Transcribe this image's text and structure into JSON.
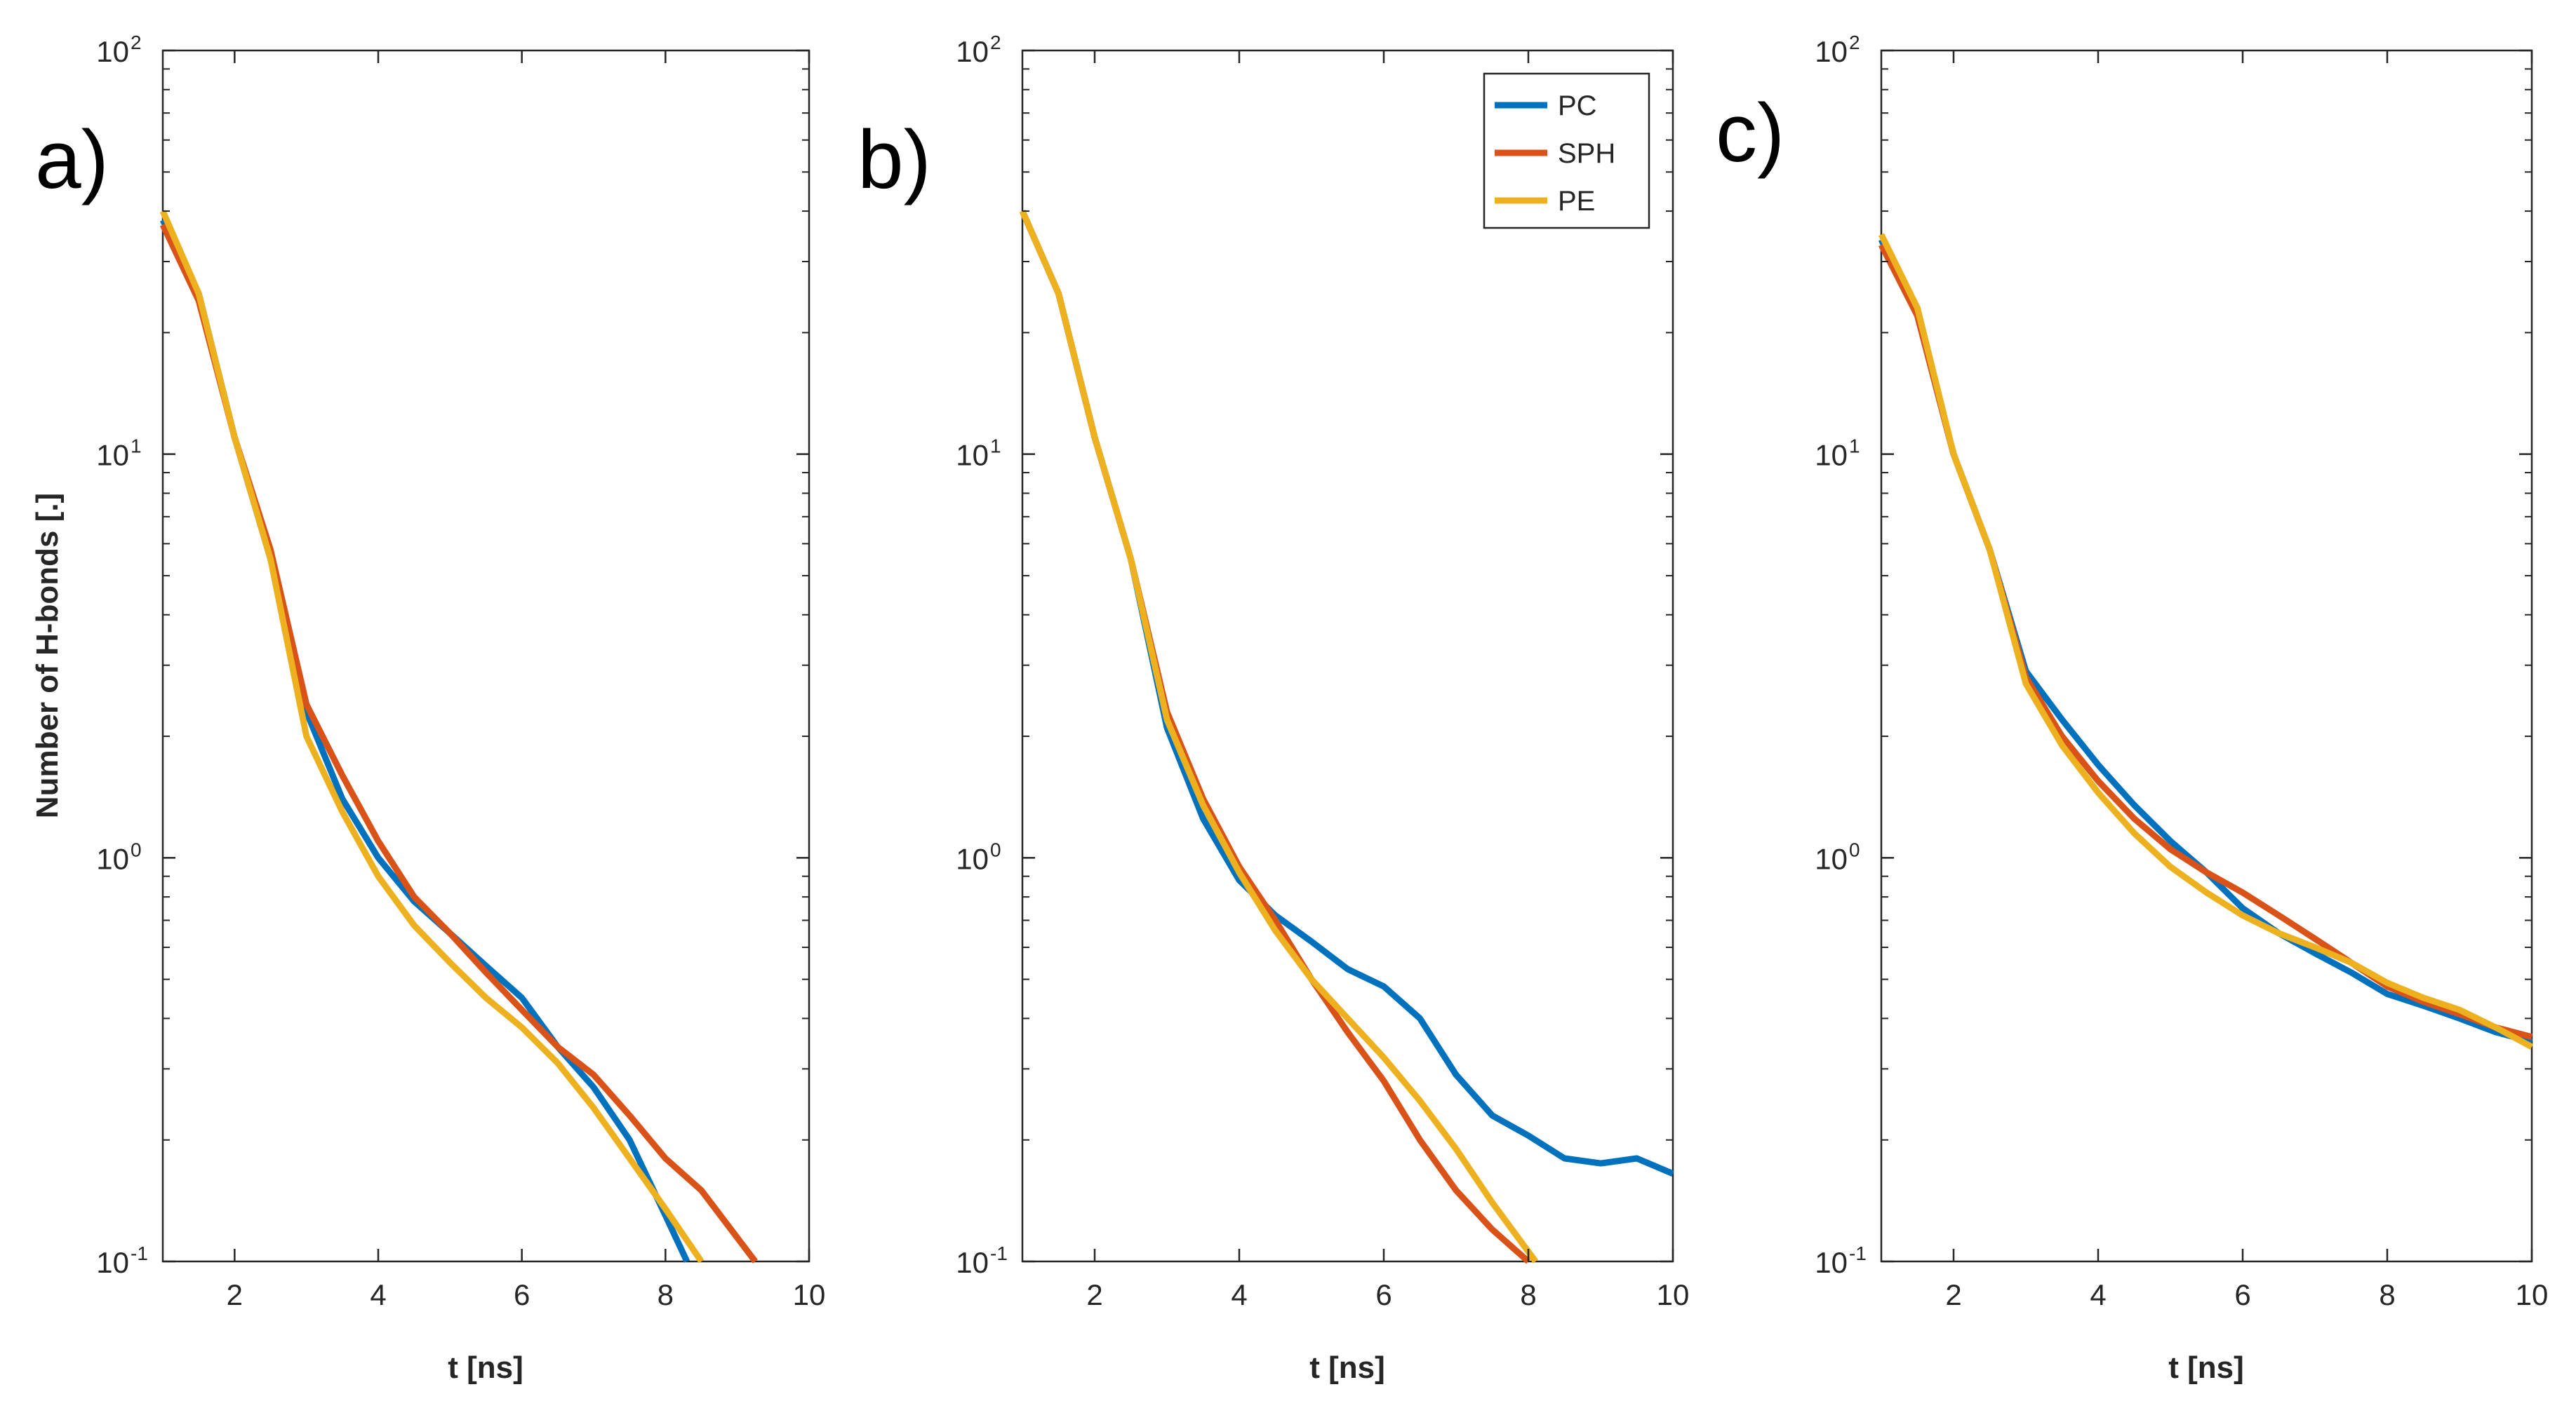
{
  "chart_data": [
    {
      "type": "line",
      "panel_label": "a)",
      "xlabel": "t [ns]",
      "ylabel": "Number of H-bonds [.]",
      "xlim": [
        1,
        10
      ],
      "ylim": [
        0.1,
        100
      ],
      "yscale": "log",
      "xticks": [
        2,
        4,
        6,
        8,
        10
      ],
      "xtick_labels": [
        "2",
        "4",
        "6",
        "8",
        "10"
      ],
      "yticks": [
        0.1,
        1,
        10,
        100
      ],
      "ytick_labels": [
        {
          "base": "10",
          "exp": "-1"
        },
        {
          "base": "10",
          "exp": "0"
        },
        {
          "base": "10",
          "exp": "1"
        },
        {
          "base": "10",
          "exp": "2"
        }
      ],
      "series": [
        {
          "name": "PC",
          "x": [
            1,
            1.5,
            2,
            2.5,
            3,
            3.5,
            4,
            4.5,
            5,
            5.5,
            6,
            6.5,
            7,
            7.5,
            8,
            8.3
          ],
          "values": [
            38,
            25,
            11,
            5.5,
            2.3,
            1.4,
            1.0,
            0.78,
            0.65,
            0.54,
            0.45,
            0.34,
            0.27,
            0.2,
            0.13,
            0.1
          ]
        },
        {
          "name": "SPH",
          "x": [
            1,
            1.5,
            2,
            2.5,
            3,
            3.5,
            4,
            4.5,
            5,
            5.5,
            6,
            6.5,
            7,
            7.5,
            8,
            8.5,
            9.25
          ],
          "values": [
            37,
            24,
            11,
            5.8,
            2.4,
            1.6,
            1.1,
            0.8,
            0.65,
            0.52,
            0.42,
            0.34,
            0.29,
            0.23,
            0.18,
            0.15,
            0.1
          ]
        },
        {
          "name": "PE",
          "x": [
            1,
            1.5,
            2,
            2.5,
            3,
            3.5,
            4,
            4.5,
            5,
            5.5,
            6,
            6.5,
            7,
            7.5,
            8,
            8.5
          ],
          "values": [
            40,
            25,
            11,
            5.5,
            2.0,
            1.3,
            0.9,
            0.68,
            0.55,
            0.45,
            0.38,
            0.31,
            0.24,
            0.18,
            0.135,
            0.1
          ]
        }
      ]
    },
    {
      "type": "line",
      "panel_label": "b)",
      "xlabel": "t [ns]",
      "ylabel": "",
      "xlim": [
        1,
        10
      ],
      "ylim": [
        0.1,
        100
      ],
      "yscale": "log",
      "xticks": [
        2,
        4,
        6,
        8,
        10
      ],
      "xtick_labels": [
        "2",
        "4",
        "6",
        "8",
        "10"
      ],
      "yticks": [
        0.1,
        1,
        10,
        100
      ],
      "ytick_labels": [
        {
          "base": "10",
          "exp": "-1"
        },
        {
          "base": "10",
          "exp": "0"
        },
        {
          "base": "10",
          "exp": "1"
        },
        {
          "base": "10",
          "exp": "2"
        }
      ],
      "legend": {
        "position": "top-right",
        "entries": [
          "PC",
          "SPH",
          "PE"
        ]
      },
      "series": [
        {
          "name": "PC",
          "x": [
            1,
            1.5,
            2,
            2.5,
            3,
            3.5,
            4,
            4.5,
            5,
            5.5,
            6,
            6.5,
            7,
            7.5,
            8,
            8.5,
            9,
            9.5,
            10
          ],
          "values": [
            40,
            25,
            11,
            5.5,
            2.1,
            1.25,
            0.88,
            0.72,
            0.62,
            0.53,
            0.48,
            0.4,
            0.29,
            0.23,
            0.205,
            0.18,
            0.175,
            0.18,
            0.165
          ]
        },
        {
          "name": "SPH",
          "x": [
            1,
            1.5,
            2,
            2.5,
            3,
            3.5,
            4,
            4.5,
            5,
            5.5,
            6,
            6.5,
            7,
            7.5,
            8
          ],
          "values": [
            40,
            25,
            11,
            5.5,
            2.3,
            1.4,
            0.95,
            0.7,
            0.5,
            0.37,
            0.28,
            0.2,
            0.15,
            0.12,
            0.1
          ]
        },
        {
          "name": "PE",
          "x": [
            1,
            1.5,
            2,
            2.5,
            3,
            3.5,
            4,
            4.5,
            5,
            5.5,
            6,
            6.5,
            7,
            7.5,
            8.1
          ],
          "values": [
            40,
            25,
            11,
            5.5,
            2.2,
            1.35,
            0.92,
            0.66,
            0.5,
            0.4,
            0.32,
            0.25,
            0.19,
            0.14,
            0.1
          ]
        }
      ]
    },
    {
      "type": "line",
      "panel_label": "c)",
      "xlabel": "t [ns]",
      "ylabel": "",
      "xlim": [
        1,
        10
      ],
      "ylim": [
        0.1,
        100
      ],
      "yscale": "log",
      "xticks": [
        2,
        4,
        6,
        8,
        10
      ],
      "xtick_labels": [
        "2",
        "4",
        "6",
        "8",
        "10"
      ],
      "yticks": [
        0.1,
        1,
        10,
        100
      ],
      "ytick_labels": [
        {
          "base": "10",
          "exp": "-1"
        },
        {
          "base": "10",
          "exp": "0"
        },
        {
          "base": "10",
          "exp": "1"
        },
        {
          "base": "10",
          "exp": "2"
        }
      ],
      "series": [
        {
          "name": "PC",
          "x": [
            1,
            1.5,
            2,
            2.5,
            3,
            3.5,
            4,
            4.5,
            5,
            5.5,
            6,
            6.5,
            7,
            7.5,
            8,
            8.5,
            9,
            9.5,
            10
          ],
          "values": [
            34,
            22,
            10,
            5.8,
            2.9,
            2.2,
            1.7,
            1.35,
            1.1,
            0.92,
            0.75,
            0.65,
            0.58,
            0.52,
            0.46,
            0.43,
            0.4,
            0.37,
            0.35
          ]
        },
        {
          "name": "SPH",
          "x": [
            1,
            1.5,
            2,
            2.5,
            3,
            3.5,
            4,
            4.5,
            5,
            5.5,
            6,
            6.5,
            7,
            7.5,
            8,
            8.5,
            9,
            9.5,
            10
          ],
          "values": [
            33,
            22,
            10,
            5.8,
            2.8,
            2.0,
            1.55,
            1.25,
            1.05,
            0.92,
            0.82,
            0.72,
            0.63,
            0.55,
            0.48,
            0.44,
            0.41,
            0.38,
            0.36
          ]
        },
        {
          "name": "PE",
          "x": [
            1,
            1.5,
            2,
            2.5,
            3,
            3.5,
            4,
            4.5,
            5,
            5.5,
            6,
            6.5,
            7,
            7.5,
            8,
            8.5,
            9,
            9.5,
            10
          ],
          "values": [
            35,
            23,
            10,
            5.8,
            2.7,
            1.9,
            1.45,
            1.15,
            0.95,
            0.82,
            0.72,
            0.65,
            0.6,
            0.55,
            0.49,
            0.45,
            0.42,
            0.38,
            0.34
          ]
        }
      ]
    }
  ],
  "colors": {
    "PC": "#0072BD",
    "SPH": "#D95319",
    "PE": "#EDB120",
    "axis": "#262626",
    "panel_label": "#000000",
    "background": "#FFFFFF"
  }
}
